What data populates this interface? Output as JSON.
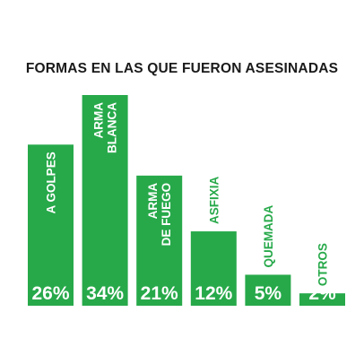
{
  "chart_data": {
    "type": "bar",
    "title": "FORMAS EN LAS QUE FUERON ASESINADAS",
    "xlabel": "",
    "ylabel": "",
    "categories": [
      [
        "A GOLPES"
      ],
      [
        "ARMA",
        "BLANCA"
      ],
      [
        "ARMA",
        "DE FUEGO"
      ],
      [
        "ASFIXIA"
      ],
      [
        "QUEMADA"
      ],
      [
        "OTROS"
      ]
    ],
    "values": [
      26,
      34,
      21,
      12,
      5,
      2
    ],
    "value_labels": [
      "26%",
      "34%",
      "21%",
      "12%",
      "5%",
      "2%"
    ],
    "unit": "%",
    "ylim": [
      0,
      34
    ],
    "grid": false,
    "legend": "none",
    "colors": {
      "bar": "#27a94a",
      "title": "#1a1a1a",
      "label_on_bar": "#ffffff",
      "label_off_bar": "#27a94a"
    }
  }
}
